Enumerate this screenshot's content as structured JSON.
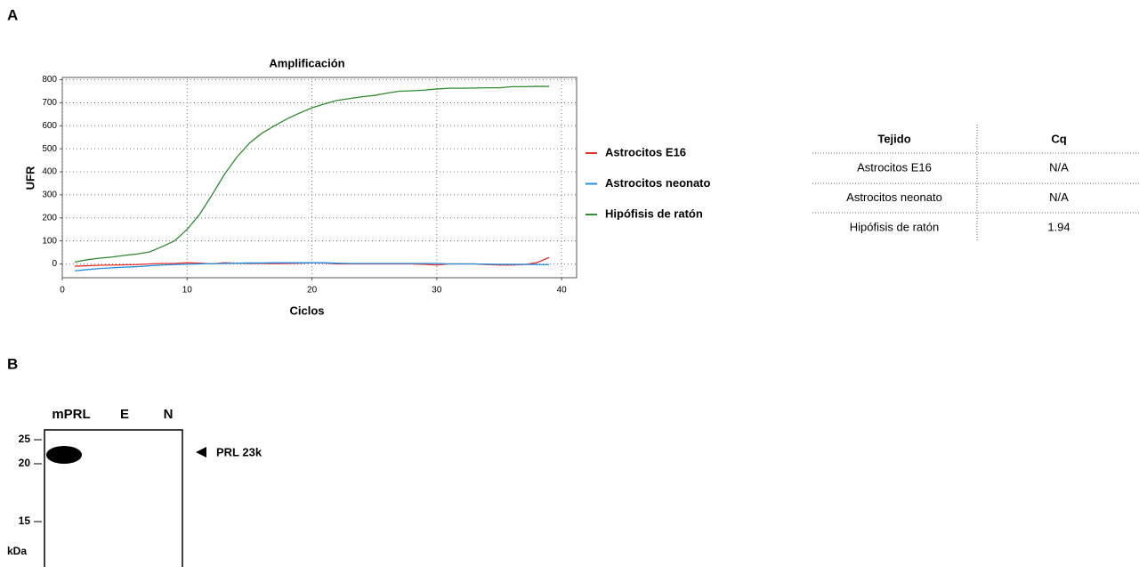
{
  "panel_labels": [
    "A",
    "B"
  ],
  "chart_data": {
    "type": "line",
    "title": "Amplificación",
    "x_label": "Ciclos",
    "y_label": "UFR",
    "x": [
      1,
      2,
      3,
      4,
      5,
      6,
      7,
      8,
      9,
      10,
      11,
      12,
      13,
      14,
      15,
      16,
      17,
      18,
      19,
      20,
      21,
      22,
      23,
      24,
      25,
      26,
      27,
      28,
      29,
      30,
      31,
      32,
      33,
      34,
      35,
      36,
      37,
      38,
      39
    ],
    "series": [
      {
        "name": "Astrocitos E16",
        "color": "#e8302a",
        "values": [
          -10,
          -8,
          -6,
          -5,
          -4,
          -3,
          0,
          2,
          2,
          5,
          3,
          0,
          5,
          3,
          2,
          2,
          1,
          2,
          3,
          5,
          4,
          0,
          0,
          0,
          0,
          0,
          0,
          0,
          -2,
          -5,
          0,
          0,
          0,
          -3,
          -5,
          -5,
          -3,
          5,
          28
        ]
      },
      {
        "name": "Astrocitos neonato",
        "color": "#1f8fe0",
        "values": [
          -30,
          -25,
          -20,
          -17,
          -14,
          -12,
          -8,
          -5,
          -3,
          -2,
          0,
          1,
          2,
          3,
          4,
          4,
          5,
          5,
          5,
          5,
          5,
          3,
          2,
          2,
          2,
          2,
          2,
          2,
          2,
          2,
          0,
          0,
          0,
          -1,
          -2,
          -2,
          -2,
          -3,
          -3
        ]
      },
      {
        "name": "Hipófisis de ratón",
        "color": "#2e8b2e",
        "values": [
          8,
          18,
          25,
          30,
          37,
          43,
          52,
          75,
          100,
          150,
          215,
          300,
          390,
          465,
          525,
          568,
          600,
          630,
          655,
          678,
          695,
          710,
          718,
          726,
          732,
          742,
          750,
          752,
          755,
          760,
          763,
          763,
          764,
          765,
          765,
          770,
          770,
          771,
          771
        ]
      }
    ],
    "xlim": [
      0,
      41.2
    ],
    "ylim": [
      -60,
      810
    ],
    "xticks": [
      0,
      10,
      20,
      30,
      40
    ],
    "yticks": [
      0,
      100,
      200,
      300,
      400,
      500,
      600,
      700,
      800
    ],
    "grid": true
  },
  "table": {
    "header": [
      "Tejido",
      "Cq"
    ],
    "rows": [
      [
        "Astrocitos E16",
        "N/A"
      ],
      [
        "Astrocitos neonato",
        "N/A"
      ],
      [
        "Hipófisis de ratón",
        "1.94"
      ]
    ]
  },
  "blot": {
    "lanes": [
      "mPRL",
      "E",
      "N"
    ],
    "markers": [
      "25",
      "20",
      "15"
    ],
    "unit": "kDa",
    "annotation": "PRL 23k"
  }
}
